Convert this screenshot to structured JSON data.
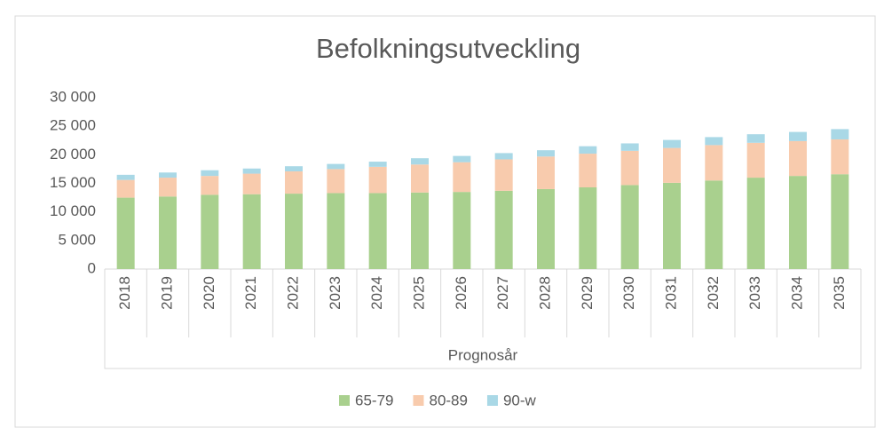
{
  "chart_data": {
    "type": "stacked_bar",
    "title": "Befolkningsutveckling",
    "x_label": "Prognosår",
    "categories": [
      "2018",
      "2019",
      "2020",
      "2021",
      "2022",
      "2023",
      "2024",
      "2025",
      "2026",
      "2027",
      "2028",
      "2029",
      "2030",
      "2031",
      "2032",
      "2033",
      "2034",
      "2035"
    ],
    "series": [
      {
        "name": "65-79",
        "color": "#a9d08e",
        "values": [
          12500,
          12700,
          13000,
          13100,
          13200,
          13300,
          13300,
          13400,
          13500,
          13700,
          14000,
          14300,
          14700,
          15100,
          15500,
          16000,
          16300,
          16600
        ]
      },
      {
        "name": "80-89",
        "color": "#f8cbad",
        "values": [
          3100,
          3300,
          3300,
          3600,
          3900,
          4200,
          4600,
          4900,
          5200,
          5500,
          5700,
          5900,
          6000,
          6100,
          6200,
          6100,
          6100,
          6100
        ]
      },
      {
        "name": "90-w",
        "color": "#a9d8e6",
        "values": [
          900,
          900,
          1000,
          900,
          900,
          900,
          900,
          1100,
          1100,
          1100,
          1100,
          1300,
          1300,
          1400,
          1400,
          1500,
          1600,
          1800
        ]
      }
    ],
    "ylim": [
      0,
      30000
    ],
    "yticks": [
      0,
      {
        "value": 5000,
        "label": "5 000"
      },
      {
        "value": 10000,
        "label": "10 000"
      },
      {
        "value": 15000,
        "label": "15 000"
      },
      {
        "value": 20000,
        "label": "20 000"
      },
      {
        "value": 25000,
        "label": "25 000"
      },
      {
        "value": 30000,
        "label": "30 000"
      }
    ],
    "grid": false,
    "legend": "bottom"
  }
}
